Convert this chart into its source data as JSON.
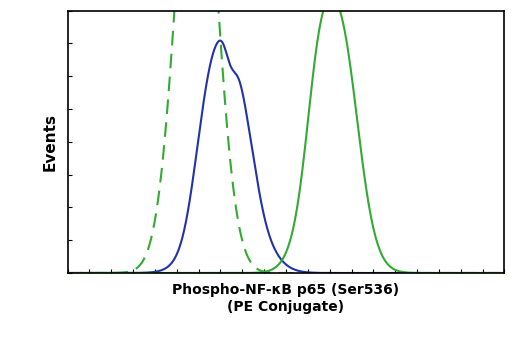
{
  "title": "",
  "xlabel": "Phospho-NF-κB p65 (Ser536)\n(PE Conjugate)",
  "ylabel": "Events",
  "bg_color": "#ffffff",
  "border_color": "#000000",
  "green_dashed_color": "#33aa33",
  "blue_solid_color": "#2233aa",
  "green_solid_color": "#33aa33",
  "xlim": [
    0,
    1000
  ],
  "ylim": [
    0,
    0.72
  ],
  "linewidth": 1.5,
  "xlabel_fontsize": 10,
  "ylabel_fontsize": 11
}
